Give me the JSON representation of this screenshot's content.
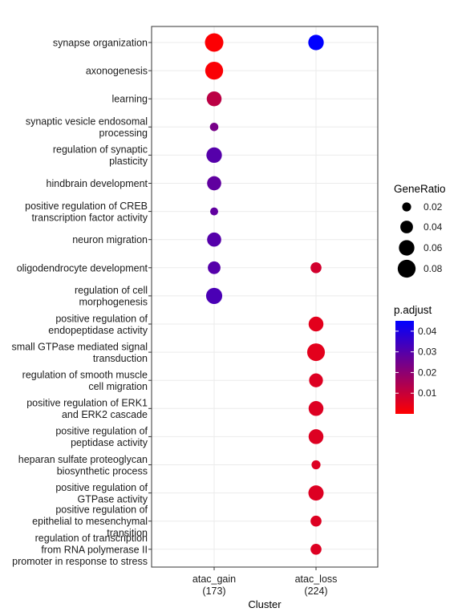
{
  "chart_data": {
    "type": "scatter",
    "xlabel": "Cluster",
    "clusters": [
      {
        "name": "atac_gain",
        "count": "(173)"
      },
      {
        "name": "atac_loss",
        "count": "(224)"
      }
    ],
    "terms": [
      {
        "lines": [
          "synapse organization"
        ]
      },
      {
        "lines": [
          "axonogenesis"
        ]
      },
      {
        "lines": [
          "learning"
        ]
      },
      {
        "lines": [
          "synaptic vesicle endosomal",
          "processing"
        ]
      },
      {
        "lines": [
          "regulation of synaptic",
          "plasticity"
        ]
      },
      {
        "lines": [
          "hindbrain development"
        ]
      },
      {
        "lines": [
          "positive regulation of CREB",
          "transcription factor activity"
        ]
      },
      {
        "lines": [
          "neuron migration"
        ]
      },
      {
        "lines": [
          "oligodendrocyte development"
        ]
      },
      {
        "lines": [
          "regulation of cell",
          "morphogenesis"
        ]
      },
      {
        "lines": [
          "positive regulation of",
          "endopeptidase activity"
        ]
      },
      {
        "lines": [
          "small GTPase mediated signal",
          "transduction"
        ]
      },
      {
        "lines": [
          "regulation of smooth muscle",
          "cell migration"
        ]
      },
      {
        "lines": [
          "positive regulation of ERK1",
          "and ERK2 cascade"
        ]
      },
      {
        "lines": [
          "positive regulation of",
          "peptidase activity"
        ]
      },
      {
        "lines": [
          "heparan sulfate proteoglycan",
          "biosynthetic process"
        ]
      },
      {
        "lines": [
          "positive regulation of",
          "GTPase activity"
        ]
      },
      {
        "lines": [
          "positive regulation of",
          "epithelial to mesenchymal",
          "transition"
        ]
      },
      {
        "lines": [
          "regulation of transcription",
          "from RNA polymerase II",
          "promoter in response to stress"
        ]
      }
    ],
    "points": [
      {
        "cluster": 0,
        "term": 0,
        "gene_ratio": 0.085,
        "p_adjust": 0.0005
      },
      {
        "cluster": 0,
        "term": 1,
        "gene_ratio": 0.08,
        "p_adjust": 0.0008
      },
      {
        "cluster": 0,
        "term": 2,
        "gene_ratio": 0.055,
        "p_adjust": 0.012
      },
      {
        "cluster": 0,
        "term": 3,
        "gene_ratio": 0.018,
        "p_adjust": 0.024
      },
      {
        "cluster": 0,
        "term": 4,
        "gene_ratio": 0.06,
        "p_adjust": 0.03
      },
      {
        "cluster": 0,
        "term": 5,
        "gene_ratio": 0.05,
        "p_adjust": 0.028
      },
      {
        "cluster": 0,
        "term": 6,
        "gene_ratio": 0.016,
        "p_adjust": 0.028
      },
      {
        "cluster": 0,
        "term": 7,
        "gene_ratio": 0.05,
        "p_adjust": 0.03
      },
      {
        "cluster": 0,
        "term": 8,
        "gene_ratio": 0.04,
        "p_adjust": 0.03
      },
      {
        "cluster": 0,
        "term": 9,
        "gene_ratio": 0.065,
        "p_adjust": 0.032
      },
      {
        "cluster": 1,
        "term": 0,
        "gene_ratio": 0.06,
        "p_adjust": 0.045
      },
      {
        "cluster": 1,
        "term": 8,
        "gene_ratio": 0.03,
        "p_adjust": 0.008
      },
      {
        "cluster": 1,
        "term": 10,
        "gene_ratio": 0.055,
        "p_adjust": 0.005
      },
      {
        "cluster": 1,
        "term": 11,
        "gene_ratio": 0.078,
        "p_adjust": 0.005
      },
      {
        "cluster": 1,
        "term": 12,
        "gene_ratio": 0.048,
        "p_adjust": 0.006
      },
      {
        "cluster": 1,
        "term": 13,
        "gene_ratio": 0.055,
        "p_adjust": 0.006
      },
      {
        "cluster": 1,
        "term": 14,
        "gene_ratio": 0.055,
        "p_adjust": 0.006
      },
      {
        "cluster": 1,
        "term": 15,
        "gene_ratio": 0.02,
        "p_adjust": 0.006
      },
      {
        "cluster": 1,
        "term": 16,
        "gene_ratio": 0.058,
        "p_adjust": 0.006
      },
      {
        "cluster": 1,
        "term": 17,
        "gene_ratio": 0.03,
        "p_adjust": 0.006
      },
      {
        "cluster": 1,
        "term": 18,
        "gene_ratio": 0.03,
        "p_adjust": 0.006
      }
    ],
    "size_legend": {
      "title": "GeneRatio",
      "breaks": [
        0.02,
        0.04,
        0.06,
        0.08
      ],
      "labels": [
        "0.02",
        "0.04",
        "0.06",
        "0.08"
      ]
    },
    "color_legend": {
      "title": "p.adjust",
      "range": [
        0.0,
        0.045
      ],
      "breaks": [
        0.01,
        0.02,
        0.03,
        0.04
      ],
      "labels": [
        "0.01",
        "0.02",
        "0.03",
        "0.04"
      ],
      "low_color": "#ff0000",
      "high_color": "#0000ff"
    },
    "grid": true,
    "legend_position": "right"
  }
}
